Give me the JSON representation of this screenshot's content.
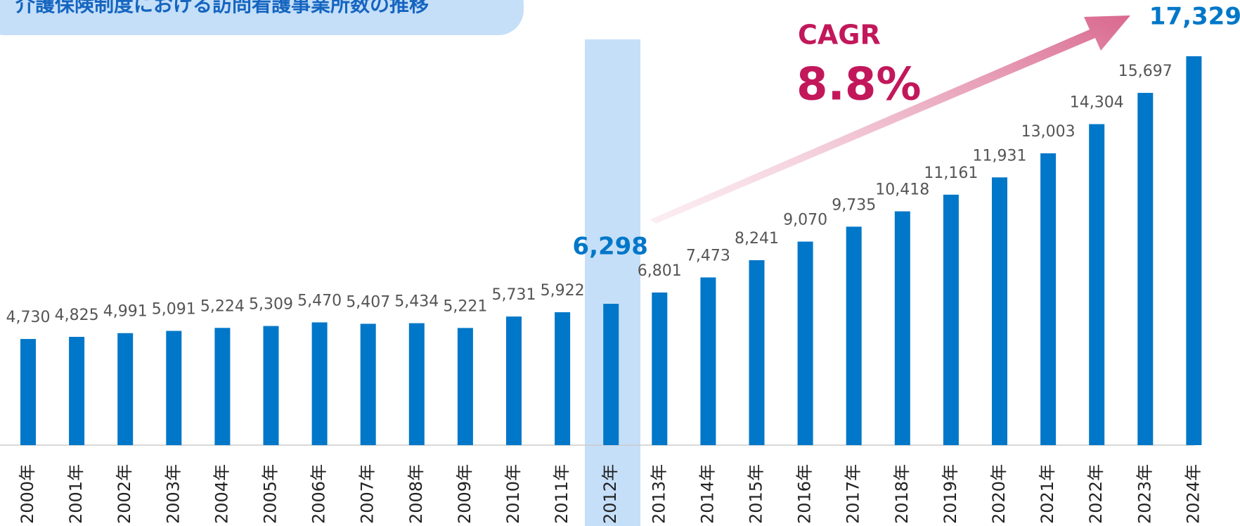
{
  "chart_data": {
    "type": "bar",
    "title": "介護保険制度における訪問看護事業所数の推移",
    "categories": [
      "2000年",
      "2001年",
      "2002年",
      "2003年",
      "2004年",
      "2005年",
      "2006年",
      "2007年",
      "2008年",
      "2009年",
      "2010年",
      "2011年",
      "2012年",
      "2013年",
      "2014年",
      "2015年",
      "2016年",
      "2017年",
      "2018年",
      "2019年",
      "2020年",
      "2021年",
      "2022年",
      "2023年",
      "2024年"
    ],
    "values": [
      4730,
      4825,
      4991,
      5091,
      5224,
      5309,
      5470,
      5407,
      5434,
      5221,
      5731,
      5922,
      6298,
      6801,
      7473,
      8241,
      9070,
      9735,
      10418,
      11161,
      11931,
      13003,
      14304,
      15697,
      17329
    ],
    "value_labels": [
      "4,730",
      "4,825",
      "4,991",
      "5,091",
      "5,224",
      "5,309",
      "5,470",
      "5,407",
      "5,434",
      "5,221",
      "5,731",
      "5,922",
      "6,298",
      "6,801",
      "7,473",
      "8,241",
      "9,070",
      "9,735",
      "10,418",
      "11,161",
      "11,931",
      "13,003",
      "14,304",
      "15,697",
      "17,329"
    ],
    "color": "#0077c8",
    "annotations": [
      "CAGR",
      "8.8%"
    ]
  }
}
